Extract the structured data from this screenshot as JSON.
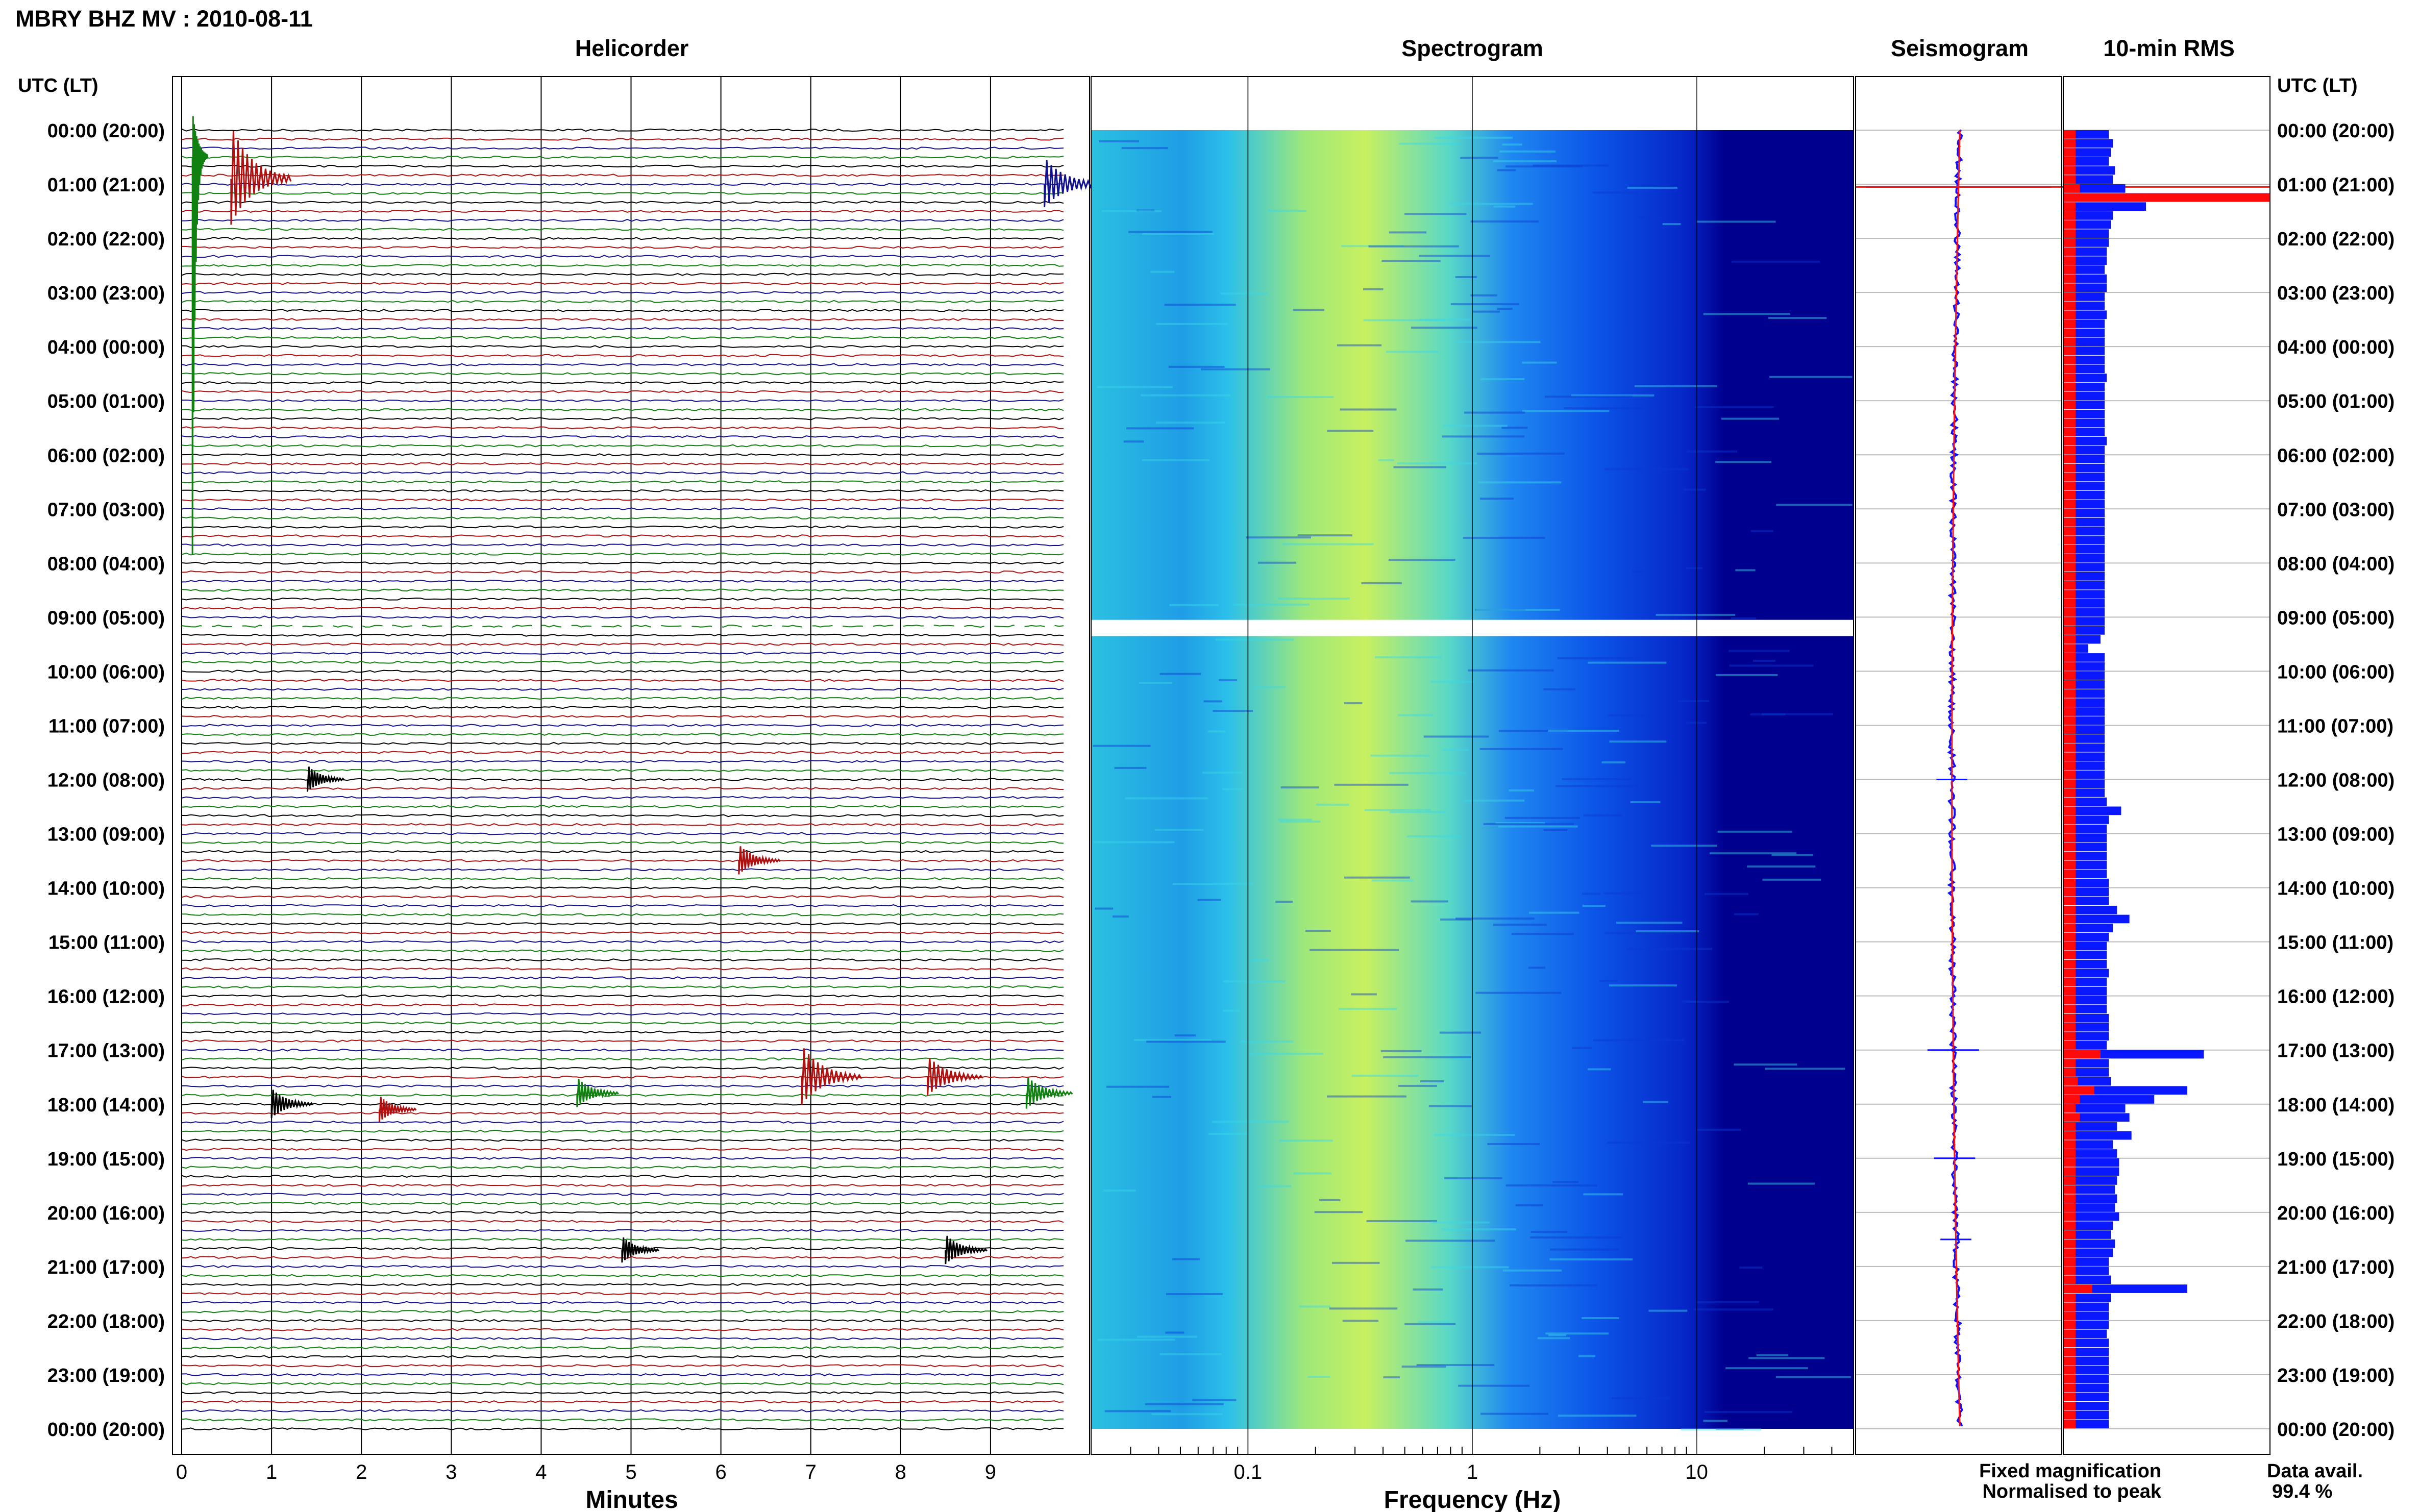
{
  "header": {
    "title": "MBRY BHZ MV : 2010-08-11",
    "time_header_left": "UTC (LT)",
    "time_header_right": "UTC (LT)"
  },
  "panels": {
    "helicorder": "Helicorder",
    "spectrogram": "Spectrogram",
    "seismogram": "Seismogram",
    "rms": "10-min RMS"
  },
  "axes": {
    "minutes_label": "Minutes",
    "frequency_label": "Frequency (Hz)"
  },
  "legend": {
    "fixed": "Fixed magnification",
    "normalised": "Normalised to peak",
    "fixed_color": "#1010ff",
    "normalised_color": "#ff1010"
  },
  "data_availability": {
    "label": "Data avail.",
    "value": "99.4 %"
  },
  "colors": {
    "trace_cycle": [
      "#000000",
      "#b01010",
      "#101090",
      "#108010"
    ],
    "spec_low": "#00008f",
    "spec_mid": "#00a0ff",
    "spec_high": "#c8f060",
    "rms_fixed": "#0a18ff",
    "rms_norm": "#ff0a0a"
  },
  "chart_data": [
    {
      "type": "line",
      "panel": "helicorder",
      "title": "Helicorder",
      "xlabel": "Minutes",
      "xlim": [
        0,
        10
      ],
      "x_ticks": [
        "0",
        "1",
        "2",
        "3",
        "4",
        "5",
        "6",
        "7",
        "8",
        "9"
      ],
      "y_ticks": [
        "00:00 (20:00)",
        "01:00 (21:00)",
        "02:00 (22:00)",
        "03:00 (23:00)",
        "04:00 (00:00)",
        "05:00 (01:00)",
        "06:00 (02:00)",
        "07:00 (03:00)",
        "08:00 (04:00)",
        "09:00 (05:00)",
        "10:00 (06:00)",
        "11:00 (07:00)",
        "12:00 (08:00)",
        "13:00 (09:00)",
        "14:00 (10:00)",
        "15:00 (11:00)",
        "16:00 (12:00)",
        "17:00 (13:00)",
        "18:00 (14:00)",
        "19:00 (15:00)",
        "20:00 (16:00)",
        "21:00 (17:00)",
        "22:00 (18:00)",
        "23:00 (19:00)",
        "00:00 (20:00)"
      ],
      "lines_per_hour": 6,
      "data_gap_hours": [
        9.1,
        9.3
      ],
      "events": [
        {
          "hour": 0.5,
          "minute": 0.12,
          "amplitude": 10
        },
        {
          "hour": 0.9,
          "minute": 0.55,
          "amplitude": 3
        },
        {
          "hour": 1.0,
          "minute": 9.6,
          "amplitude": 1.5
        },
        {
          "hour": 12.0,
          "minute": 1.4,
          "amplitude": 0.8
        },
        {
          "hour": 13.5,
          "minute": 6.2,
          "amplitude": 0.9
        },
        {
          "hour": 17.5,
          "minute": 6.9,
          "amplitude": 1.8
        },
        {
          "hour": 17.5,
          "minute": 8.3,
          "amplitude": 1.2
        },
        {
          "hour": 17.8,
          "minute": 4.4,
          "amplitude": 0.9
        },
        {
          "hour": 17.8,
          "minute": 9.4,
          "amplitude": 1.0
        },
        {
          "hour": 18.0,
          "minute": 1.0,
          "amplitude": 0.9
        },
        {
          "hour": 18.1,
          "minute": 2.2,
          "amplitude": 0.8
        },
        {
          "hour": 20.7,
          "minute": 4.9,
          "amplitude": 0.8
        },
        {
          "hour": 20.7,
          "minute": 8.5,
          "amplitude": 0.9
        }
      ]
    },
    {
      "type": "heatmap",
      "panel": "spectrogram",
      "title": "Spectrogram",
      "xlabel": "Frequency (Hz)",
      "x_scale": "log",
      "xlim": [
        0.02,
        50
      ],
      "x_ticks": [
        "0.1",
        "1",
        "10"
      ],
      "data_gap_hours": [
        9.05,
        9.35
      ]
    },
    {
      "type": "line",
      "panel": "seismogram",
      "title": "Seismogram",
      "series": [
        {
          "name": "Fixed magnification",
          "color": "#1010ff"
        },
        {
          "name": "Normalised to peak",
          "color": "#ff1010"
        }
      ],
      "spikes": [
        {
          "hour": 1.05,
          "width": 0.9
        },
        {
          "hour": 12.0,
          "width": 0.15
        },
        {
          "hour": 17.0,
          "width": 0.25
        },
        {
          "hour": 19.0,
          "width": 0.2
        },
        {
          "hour": 20.5,
          "width": 0.15
        }
      ]
    },
    {
      "type": "bar",
      "panel": "rms",
      "title": "10-min RMS",
      "categories_per_hour": 6,
      "series": [
        {
          "name": "Fixed magnification",
          "color": "#0a18ff",
          "values": [
            0.22,
            0.24,
            0.23,
            0.22,
            0.25,
            0.24,
            0.3,
            1.0,
            0.4,
            0.24,
            0.23,
            0.22,
            0.22,
            0.21,
            0.21,
            0.2,
            0.21,
            0.21,
            0.2,
            0.2,
            0.21,
            0.2,
            0.2,
            0.2,
            0.2,
            0.2,
            0.2,
            0.21,
            0.2,
            0.2,
            0.2,
            0.2,
            0.2,
            0.2,
            0.21,
            0.2,
            0.2,
            0.2,
            0.2,
            0.2,
            0.2,
            0.2,
            0.2,
            0.2,
            0.2,
            0.2,
            0.2,
            0.2,
            0.2,
            0.2,
            0.2,
            0.2,
            0.2,
            0.2,
            0.2,
            0.2,
            0.18,
            0.12,
            0.2,
            0.2,
            0.2,
            0.2,
            0.2,
            0.2,
            0.2,
            0.2,
            0.2,
            0.2,
            0.2,
            0.2,
            0.2,
            0.2,
            0.2,
            0.2,
            0.21,
            0.28,
            0.22,
            0.21,
            0.21,
            0.21,
            0.21,
            0.21,
            0.21,
            0.22,
            0.22,
            0.22,
            0.26,
            0.32,
            0.24,
            0.22,
            0.21,
            0.21,
            0.21,
            0.22,
            0.21,
            0.21,
            0.21,
            0.21,
            0.22,
            0.22,
            0.22,
            0.21,
            0.68,
            0.22,
            0.22,
            0.23,
            0.6,
            0.44,
            0.3,
            0.32,
            0.26,
            0.33,
            0.24,
            0.26,
            0.27,
            0.27,
            0.26,
            0.25,
            0.26,
            0.25,
            0.27,
            0.24,
            0.23,
            0.25,
            0.24,
            0.22,
            0.22,
            0.23,
            0.6,
            0.23,
            0.22,
            0.22,
            0.22,
            0.21,
            0.22,
            0.22,
            0.22,
            0.22,
            0.22,
            0.22,
            0.22,
            0.22,
            0.22,
            0.22
          ]
        },
        {
          "name": "Normalised to peak",
          "color": "#ff0a0a",
          "values": [
            0.06,
            0.06,
            0.06,
            0.06,
            0.06,
            0.06,
            0.08,
            1.0,
            0.06,
            0.06,
            0.06,
            0.06,
            0.06,
            0.06,
            0.06,
            0.06,
            0.06,
            0.06,
            0.06,
            0.06,
            0.06,
            0.06,
            0.06,
            0.06,
            0.06,
            0.06,
            0.06,
            0.06,
            0.06,
            0.06,
            0.06,
            0.06,
            0.06,
            0.06,
            0.06,
            0.06,
            0.06,
            0.06,
            0.06,
            0.06,
            0.06,
            0.06,
            0.06,
            0.06,
            0.06,
            0.06,
            0.06,
            0.06,
            0.06,
            0.06,
            0.06,
            0.06,
            0.06,
            0.06,
            0.06,
            0.06,
            0.06,
            0.06,
            0.06,
            0.06,
            0.06,
            0.06,
            0.06,
            0.06,
            0.06,
            0.06,
            0.06,
            0.06,
            0.06,
            0.06,
            0.06,
            0.06,
            0.06,
            0.06,
            0.06,
            0.06,
            0.06,
            0.06,
            0.06,
            0.06,
            0.06,
            0.06,
            0.06,
            0.06,
            0.06,
            0.06,
            0.06,
            0.06,
            0.06,
            0.06,
            0.06,
            0.06,
            0.06,
            0.06,
            0.06,
            0.06,
            0.06,
            0.06,
            0.06,
            0.06,
            0.06,
            0.06,
            0.18,
            0.06,
            0.06,
            0.07,
            0.15,
            0.08,
            0.06,
            0.08,
            0.06,
            0.06,
            0.06,
            0.06,
            0.06,
            0.06,
            0.06,
            0.06,
            0.06,
            0.06,
            0.06,
            0.06,
            0.06,
            0.06,
            0.06,
            0.06,
            0.06,
            0.06,
            0.14,
            0.06,
            0.06,
            0.06,
            0.06,
            0.06,
            0.06,
            0.06,
            0.06,
            0.06,
            0.06,
            0.06,
            0.06,
            0.06,
            0.06,
            0.06
          ]
        }
      ]
    }
  ]
}
